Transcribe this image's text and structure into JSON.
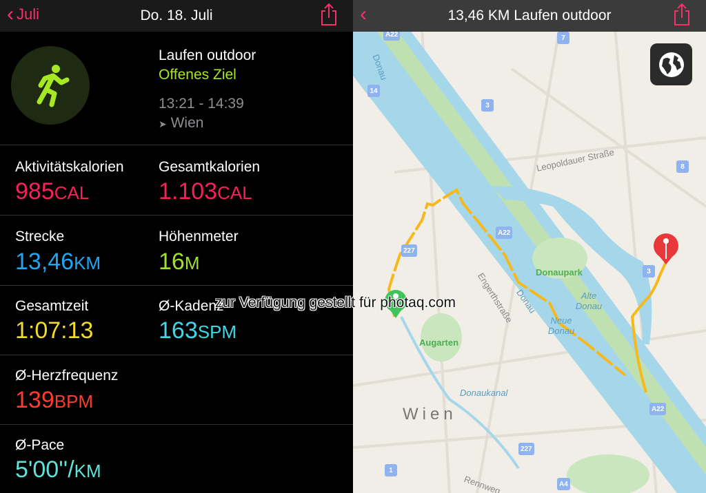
{
  "left": {
    "back_label": "Juli",
    "title": "Do. 18. Juli",
    "workout": {
      "name": "Laufen outdoor",
      "goal": "Offenes Ziel",
      "time": "13:21 - 14:39",
      "location": "Wien"
    },
    "metrics": [
      {
        "label": "Aktivitätskalorien",
        "value": "985",
        "unit": "CAL",
        "color": "#fa1f5a"
      },
      {
        "label": "Gesamtkalorien",
        "value": "1.103",
        "unit": "CAL",
        "color": "#fa1f5a"
      },
      {
        "label": "Strecke",
        "value": "13,46",
        "unit": "KM",
        "color": "#1fa7f2"
      },
      {
        "label": "Höhenmeter",
        "value": "16",
        "unit": "M",
        "color": "#9fe12b"
      },
      {
        "label": "Gesamtzeit",
        "value": "1:07:13",
        "unit": "",
        "color": "#f0dc2a"
      },
      {
        "label": "Ø-Kadenz",
        "value": "163",
        "unit": "SPM",
        "color": "#3fd7e6"
      },
      {
        "label": "Ø-Herzfrequenz",
        "value": "139",
        "unit": "BPM",
        "color": "#ff3b2f"
      },
      {
        "label": "Ø-Pace",
        "value": "5'00''/",
        "unit": "KM",
        "color": "#5ee3da"
      }
    ]
  },
  "right": {
    "title": "13,46 KM Laufen outdoor",
    "map_labels": {
      "donau": "Donau",
      "leopoldauer": "Leopoldauer Straße",
      "donaupark": "Donaupark",
      "alte_donau": "Alte Donau",
      "neue_donau": "Neue Donau",
      "engerth": "Engerthstraße",
      "augarten": "Augarten",
      "donaukanal": "Donaukanal",
      "wien": "Wien",
      "rennweg": "Rennweg"
    },
    "road_shields": [
      "A22",
      "7",
      "14",
      "3",
      "8",
      "A22",
      "227",
      "3",
      "227",
      "1",
      "A4",
      "A22"
    ]
  },
  "watermark": "zur Verfügung gestellt für photaq.com"
}
